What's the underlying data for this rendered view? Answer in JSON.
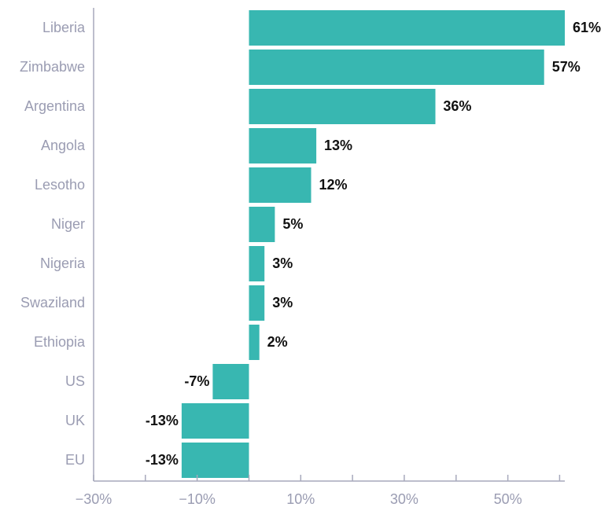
{
  "chart_data": {
    "type": "bar",
    "orientation": "horizontal",
    "categories": [
      "Liberia",
      "Zimbabwe",
      "Argentina",
      "Angola",
      "Lesotho",
      "Niger",
      "Nigeria",
      "Swaziland",
      "Ethiopia",
      "US",
      "UK",
      "EU"
    ],
    "values": [
      61,
      57,
      36,
      13,
      12,
      5,
      3,
      3,
      2,
      -7,
      -13,
      -13
    ],
    "data_labels": [
      "61%",
      "57%",
      "36%",
      "13%",
      "12%",
      "5%",
      "3%",
      "3%",
      "2%",
      "-7%",
      "-13%",
      "-13%"
    ],
    "title": "",
    "xlabel": "",
    "ylabel": "",
    "xlim": [
      -30,
      61
    ],
    "x_ticks": [
      -30,
      -20,
      -10,
      0,
      10,
      20,
      30,
      40,
      50,
      60
    ],
    "x_tick_labels": [
      "−30%",
      "",
      "−10%",
      "",
      "10%",
      "",
      "30%",
      "",
      "50%",
      ""
    ],
    "grid": false,
    "colors": {
      "bar": "#38b7b1",
      "axis": "#a7a9bc",
      "category_text": "#9a9cb2",
      "tick_text": "#9a9cb2",
      "value_text": "#111111"
    }
  }
}
